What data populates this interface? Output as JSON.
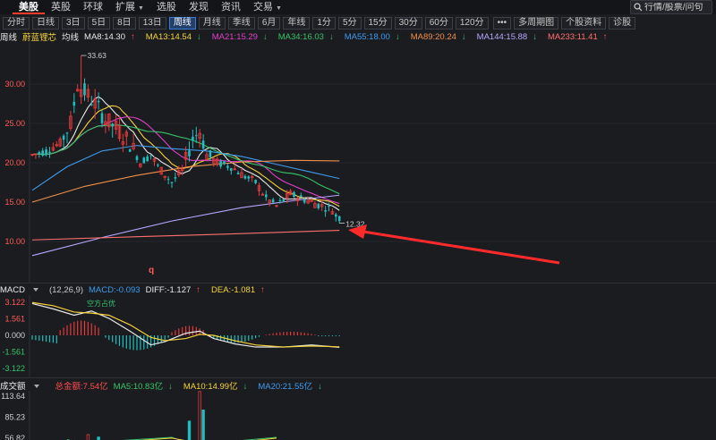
{
  "nav": {
    "items": [
      {
        "label": "",
        "caret": false
      },
      {
        "label": "美股",
        "caret": false,
        "active": true
      },
      {
        "label": "英股",
        "caret": false
      },
      {
        "label": "环球",
        "caret": false
      },
      {
        "label": "扩展",
        "caret": true
      },
      {
        "label": "选股",
        "caret": false
      },
      {
        "label": "发现",
        "caret": false
      },
      {
        "label": "资讯",
        "caret": false
      },
      {
        "label": "交易",
        "caret": true
      }
    ],
    "search_placeholder": "行情/股票/问句"
  },
  "periods": [
    "分时",
    "日线",
    "3日",
    "5日",
    "8日",
    "13日",
    "周线",
    "月线",
    "季线",
    "6月",
    "年线",
    "1分",
    "5分",
    "15分",
    "30分",
    "60分",
    "120分",
    "•••",
    "多周期图",
    "个股资料",
    "诊股"
  ],
  "active_period": "周线",
  "ma_legend": {
    "prefix": "周线",
    "tag": "蔚蓝锂芯",
    "label": "均线",
    "items": [
      {
        "text": "MA8:14.30",
        "arrow": "↑",
        "color": "#e8e8e8"
      },
      {
        "text": "MA13:14.54",
        "arrow": "↓",
        "color": "#f5d33b"
      },
      {
        "text": "MA21:15.29",
        "arrow": "↓",
        "color": "#e040c8"
      },
      {
        "text": "MA34:16.03",
        "arrow": "↓",
        "color": "#36c46a"
      },
      {
        "text": "MA55:18.00",
        "arrow": "↓",
        "color": "#3d9cf0"
      },
      {
        "text": "MA89:20.24",
        "arrow": "↓",
        "color": "#f0904a"
      },
      {
        "text": "MA144:15.88",
        "arrow": "↓",
        "color": "#b9a7ff"
      },
      {
        "text": "MA233:11.41",
        "arrow": "↑",
        "color": "#ff6f6f"
      }
    ]
  },
  "price_axis": {
    "ticks": [
      "30.00",
      "25.00",
      "20.00",
      "15.00",
      "10.00"
    ]
  },
  "price_annotations": {
    "high": "33.63",
    "low": "12.32",
    "marker": "q"
  },
  "macd": {
    "name": "MACD",
    "params": "(12,26,9)",
    "macd": "MACD:-0.093",
    "diff": "DIFF:-1.127",
    "dea": "DEA:-1.081",
    "ticks": [
      "3.122",
      "1.561",
      "0.000",
      "-1.561",
      "-3.122"
    ],
    "note": "空方占优"
  },
  "volume": {
    "name": "成交额",
    "total": "总金额:7.54亿",
    "ma5": "MA5:10.83亿",
    "ma10": "MA10:14.99亿",
    "ma20": "MA20:21.55亿",
    "ticks": [
      "113.64",
      "85.23",
      "56.82"
    ]
  },
  "colors": {
    "up": "#e5393b",
    "down": "#1fbfbf",
    "arrow": "#ff2a2a",
    "bg": "#1b1c20"
  }
}
